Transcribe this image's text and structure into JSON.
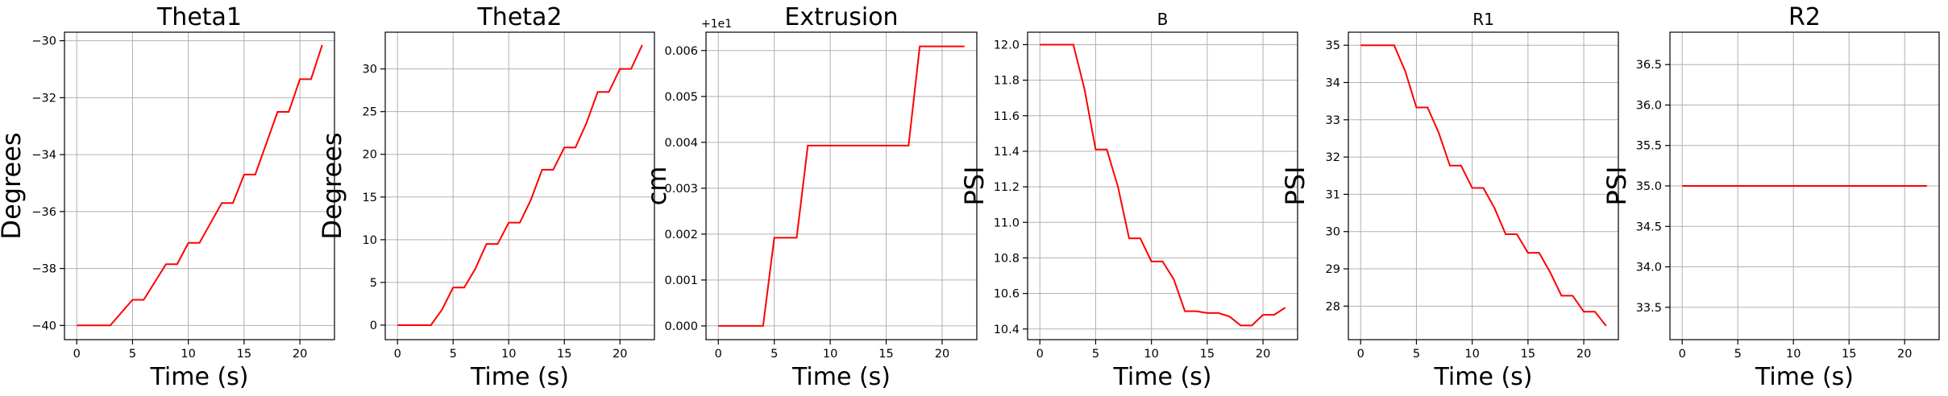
{
  "chart_data": [
    {
      "type": "line",
      "title": "Theta1",
      "xlabel": "Time (s)",
      "ylabel": "Degrees",
      "xlim": [
        -1.1,
        23.1
      ],
      "ylim": [
        -40.5,
        -29.7
      ],
      "xticks": [
        0,
        5,
        10,
        15,
        20
      ],
      "yticks": [
        -40,
        -38,
        -36,
        -34,
        -32,
        -30
      ],
      "xtick_labels": [
        "0",
        "5",
        "10",
        "15",
        "20"
      ],
      "ytick_labels": [
        "−40",
        "−38",
        "−36",
        "−34",
        "−32",
        "−30"
      ],
      "grid": true,
      "series": [
        {
          "color": "#ff0000",
          "x": [
            0,
            3,
            5,
            6,
            8,
            9,
            10,
            11,
            13,
            14,
            15,
            16,
            18,
            19,
            20,
            21,
            22
          ],
          "y": [
            -40,
            -40,
            -39.1,
            -39.1,
            -37.85,
            -37.85,
            -37.1,
            -37.1,
            -35.7,
            -35.7,
            -34.7,
            -34.7,
            -32.5,
            -32.5,
            -31.35,
            -31.35,
            -30.15
          ]
        }
      ]
    },
    {
      "type": "line",
      "title": "Theta2",
      "xlabel": "Time (s)",
      "ylabel": "Degrees",
      "xlim": [
        -1.1,
        23.1
      ],
      "ylim": [
        -1.7,
        34.3
      ],
      "xticks": [
        0,
        5,
        10,
        15,
        20
      ],
      "yticks": [
        0,
        5,
        10,
        15,
        20,
        25,
        30
      ],
      "xtick_labels": [
        "0",
        "5",
        "10",
        "15",
        "20"
      ],
      "ytick_labels": [
        "0",
        "5",
        "10",
        "15",
        "20",
        "25",
        "30"
      ],
      "grid": true,
      "series": [
        {
          "color": "#ff0000",
          "x": [
            0,
            3,
            4,
            5,
            6,
            7,
            8,
            9,
            10,
            11,
            12,
            13,
            14,
            15,
            16,
            17,
            18,
            19,
            20,
            21,
            22
          ],
          "y": [
            0,
            0,
            1.8,
            4.4,
            4.4,
            6.6,
            9.5,
            9.5,
            12,
            12,
            14.7,
            18.2,
            18.2,
            20.8,
            20.8,
            23.7,
            27.3,
            27.3,
            30,
            30,
            32.8
          ]
        }
      ]
    },
    {
      "type": "line",
      "title": "Extrusion",
      "xlabel": "Time (s)",
      "ylabel": "cm",
      "offset_text": "+1e1",
      "xlim": [
        -1.1,
        23.1
      ],
      "ylim": [
        -0.0003,
        0.0064
      ],
      "xticks": [
        0,
        5,
        10,
        15,
        20
      ],
      "yticks": [
        0,
        0.001,
        0.002,
        0.003,
        0.004,
        0.005,
        0.006
      ],
      "xtick_labels": [
        "0",
        "5",
        "10",
        "15",
        "20"
      ],
      "ytick_labels": [
        "0.000",
        "0.001",
        "0.002",
        "0.003",
        "0.004",
        "0.005",
        "0.006"
      ],
      "grid": true,
      "series": [
        {
          "color": "#ff0000",
          "x": [
            0,
            4,
            5,
            7,
            8,
            17,
            18,
            22
          ],
          "y": [
            0,
            0,
            0.00192,
            0.00192,
            0.00393,
            0.00393,
            0.00609,
            0.00609
          ]
        }
      ]
    },
    {
      "type": "line",
      "title": "B",
      "xlabel": "Time (s)",
      "ylabel": "PSI",
      "xlim": [
        -1.1,
        23.1
      ],
      "ylim": [
        10.34,
        12.07
      ],
      "xticks": [
        0,
        5,
        10,
        15,
        20
      ],
      "yticks": [
        10.4,
        10.6,
        10.8,
        11.0,
        11.2,
        11.4,
        11.6,
        11.8,
        12.0
      ],
      "xtick_labels": [
        "0",
        "5",
        "10",
        "15",
        "20"
      ],
      "ytick_labels": [
        "10.4",
        "10.6",
        "10.8",
        "11.0",
        "11.2",
        "11.4",
        "11.6",
        "11.8",
        "12.0"
      ],
      "grid": true,
      "series": [
        {
          "color": "#ff0000",
          "x": [
            0,
            3,
            4,
            5,
            6,
            7,
            8,
            9,
            10,
            11,
            12,
            13,
            14,
            15,
            16,
            17,
            18,
            19,
            20,
            21,
            22
          ],
          "y": [
            12,
            12,
            11.75,
            11.41,
            11.41,
            11.2,
            10.91,
            10.91,
            10.78,
            10.78,
            10.68,
            10.5,
            10.5,
            10.49,
            10.49,
            10.47,
            10.42,
            10.42,
            10.48,
            10.48,
            10.52
          ]
        }
      ]
    },
    {
      "type": "line",
      "title": "R1",
      "xlabel": "Time (s)",
      "ylabel": "PSI",
      "xlim": [
        -1.1,
        23.1
      ],
      "ylim": [
        27.1,
        35.35
      ],
      "xticks": [
        0,
        5,
        10,
        15,
        20
      ],
      "yticks": [
        28,
        29,
        30,
        31,
        32,
        33,
        34,
        35
      ],
      "xtick_labels": [
        "0",
        "5",
        "10",
        "15",
        "20"
      ],
      "ytick_labels": [
        "28",
        "29",
        "30",
        "31",
        "32",
        "33",
        "34",
        "35"
      ],
      "grid": true,
      "series": [
        {
          "color": "#ff0000",
          "x": [
            0,
            3,
            4,
            5,
            6,
            7,
            8,
            9,
            10,
            11,
            12,
            13,
            14,
            15,
            16,
            17,
            18,
            19,
            20,
            21,
            22
          ],
          "y": [
            35,
            35,
            34.3,
            33.33,
            33.33,
            32.65,
            31.77,
            31.77,
            31.17,
            31.17,
            30.63,
            29.93,
            29.93,
            29.43,
            29.43,
            28.9,
            28.28,
            28.28,
            27.85,
            27.85,
            27.47
          ]
        }
      ]
    },
    {
      "type": "line",
      "title": "R2",
      "xlabel": "Time (s)",
      "ylabel": "PSI",
      "xlim": [
        -1.1,
        23.1
      ],
      "ylim": [
        33.1,
        36.9
      ],
      "xticks": [
        0,
        5,
        10,
        15,
        20
      ],
      "yticks": [
        33.5,
        34.0,
        34.5,
        35.0,
        35.5,
        36.0,
        36.5
      ],
      "xtick_labels": [
        "0",
        "5",
        "10",
        "15",
        "20"
      ],
      "ytick_labels": [
        "33.5",
        "34.0",
        "34.5",
        "35.0",
        "35.5",
        "36.0",
        "36.5"
      ],
      "grid": true,
      "series": [
        {
          "color": "#ff0000",
          "x": [
            0,
            22
          ],
          "y": [
            35,
            35
          ]
        }
      ]
    }
  ]
}
